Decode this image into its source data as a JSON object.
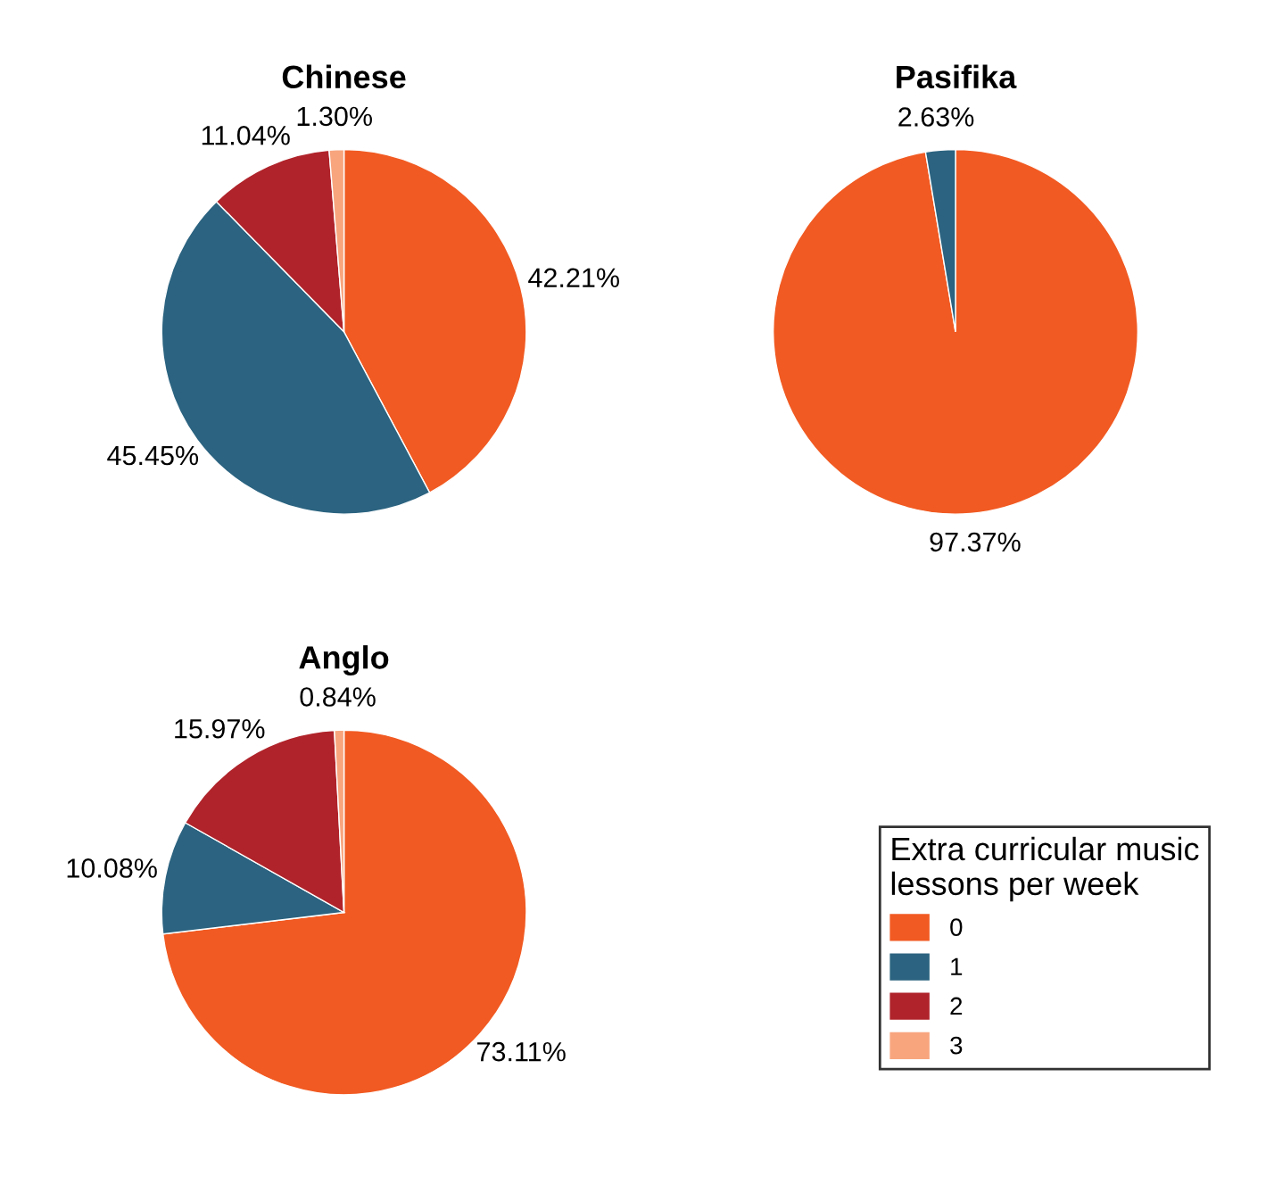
{
  "chart_data": [
    {
      "type": "pie",
      "title": "Chinese",
      "categories": [
        "0",
        "1",
        "2",
        "3"
      ],
      "values": [
        42.21,
        45.45,
        11.04,
        1.3
      ],
      "colors": [
        "#f15a22",
        "#2b6380",
        "#b0232a",
        "#f8a57e"
      ],
      "value_labels": [
        "42.21%",
        "45.45%",
        "11.04%",
        "1.30%"
      ],
      "legend": "bottom right",
      "legend_title": "Extra curricular music\nlessons per week"
    },
    {
      "type": "pie",
      "title": "Pasifika",
      "categories": [
        null,
        null
      ],
      "values": [
        97.37,
        2.63
      ],
      "colors": [
        "#f15a22",
        "#2b6380"
      ],
      "value_labels": [
        "97.37%",
        "2.63%"
      ]
    },
    {
      "type": "pie",
      "title": "Anglo",
      "categories": [
        null,
        null,
        null,
        null
      ],
      "values": [
        73.11,
        10.08,
        15.97,
        0.84
      ],
      "colors": [
        "#f15a22",
        "#2b6380",
        "#b0232a",
        "#f8a57e"
      ],
      "value_labels": [
        "73.11%",
        "10.08%",
        "15.97%",
        "0.84%"
      ]
    }
  ]
}
